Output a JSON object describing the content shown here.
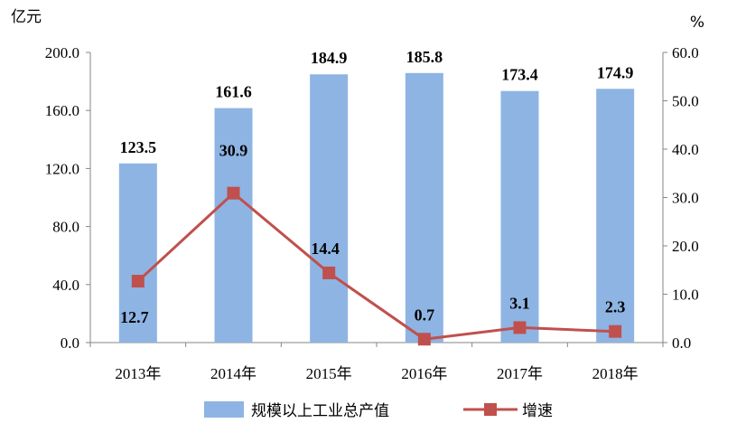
{
  "chart_data": {
    "type": "bar",
    "categories": [
      "2013年",
      "2014年",
      "2015年",
      "2016年",
      "2017年",
      "2018年"
    ],
    "series": [
      {
        "name": "规模以上工业总产值",
        "type": "bar",
        "axis": "left",
        "values": [
          123.5,
          161.6,
          184.9,
          185.8,
          173.4,
          174.9
        ],
        "color": "#8eb4e3"
      },
      {
        "name": "增速",
        "type": "line",
        "axis": "right",
        "values": [
          12.7,
          30.9,
          14.4,
          0.7,
          3.1,
          2.3
        ],
        "color": "#c0504d"
      }
    ],
    "bar_labels": [
      "123.5",
      "161.6",
      "184.9",
      "185.8",
      "173.4",
      "174.9"
    ],
    "line_labels": [
      "12.7",
      "30.9",
      "14.4",
      "0.7",
      "3.1",
      "2.3"
    ],
    "y_left": {
      "unit": "亿元",
      "ylim": [
        0,
        200
      ],
      "ticks": [
        "0.0",
        "40.0",
        "80.0",
        "120.0",
        "160.0",
        "200.0"
      ]
    },
    "y_right": {
      "unit": "%",
      "ylim": [
        0,
        60
      ],
      "ticks": [
        "0.0",
        "10.0",
        "20.0",
        "30.0",
        "40.0",
        "50.0",
        "60.0"
      ]
    },
    "grid": false,
    "legend": "bottom"
  }
}
